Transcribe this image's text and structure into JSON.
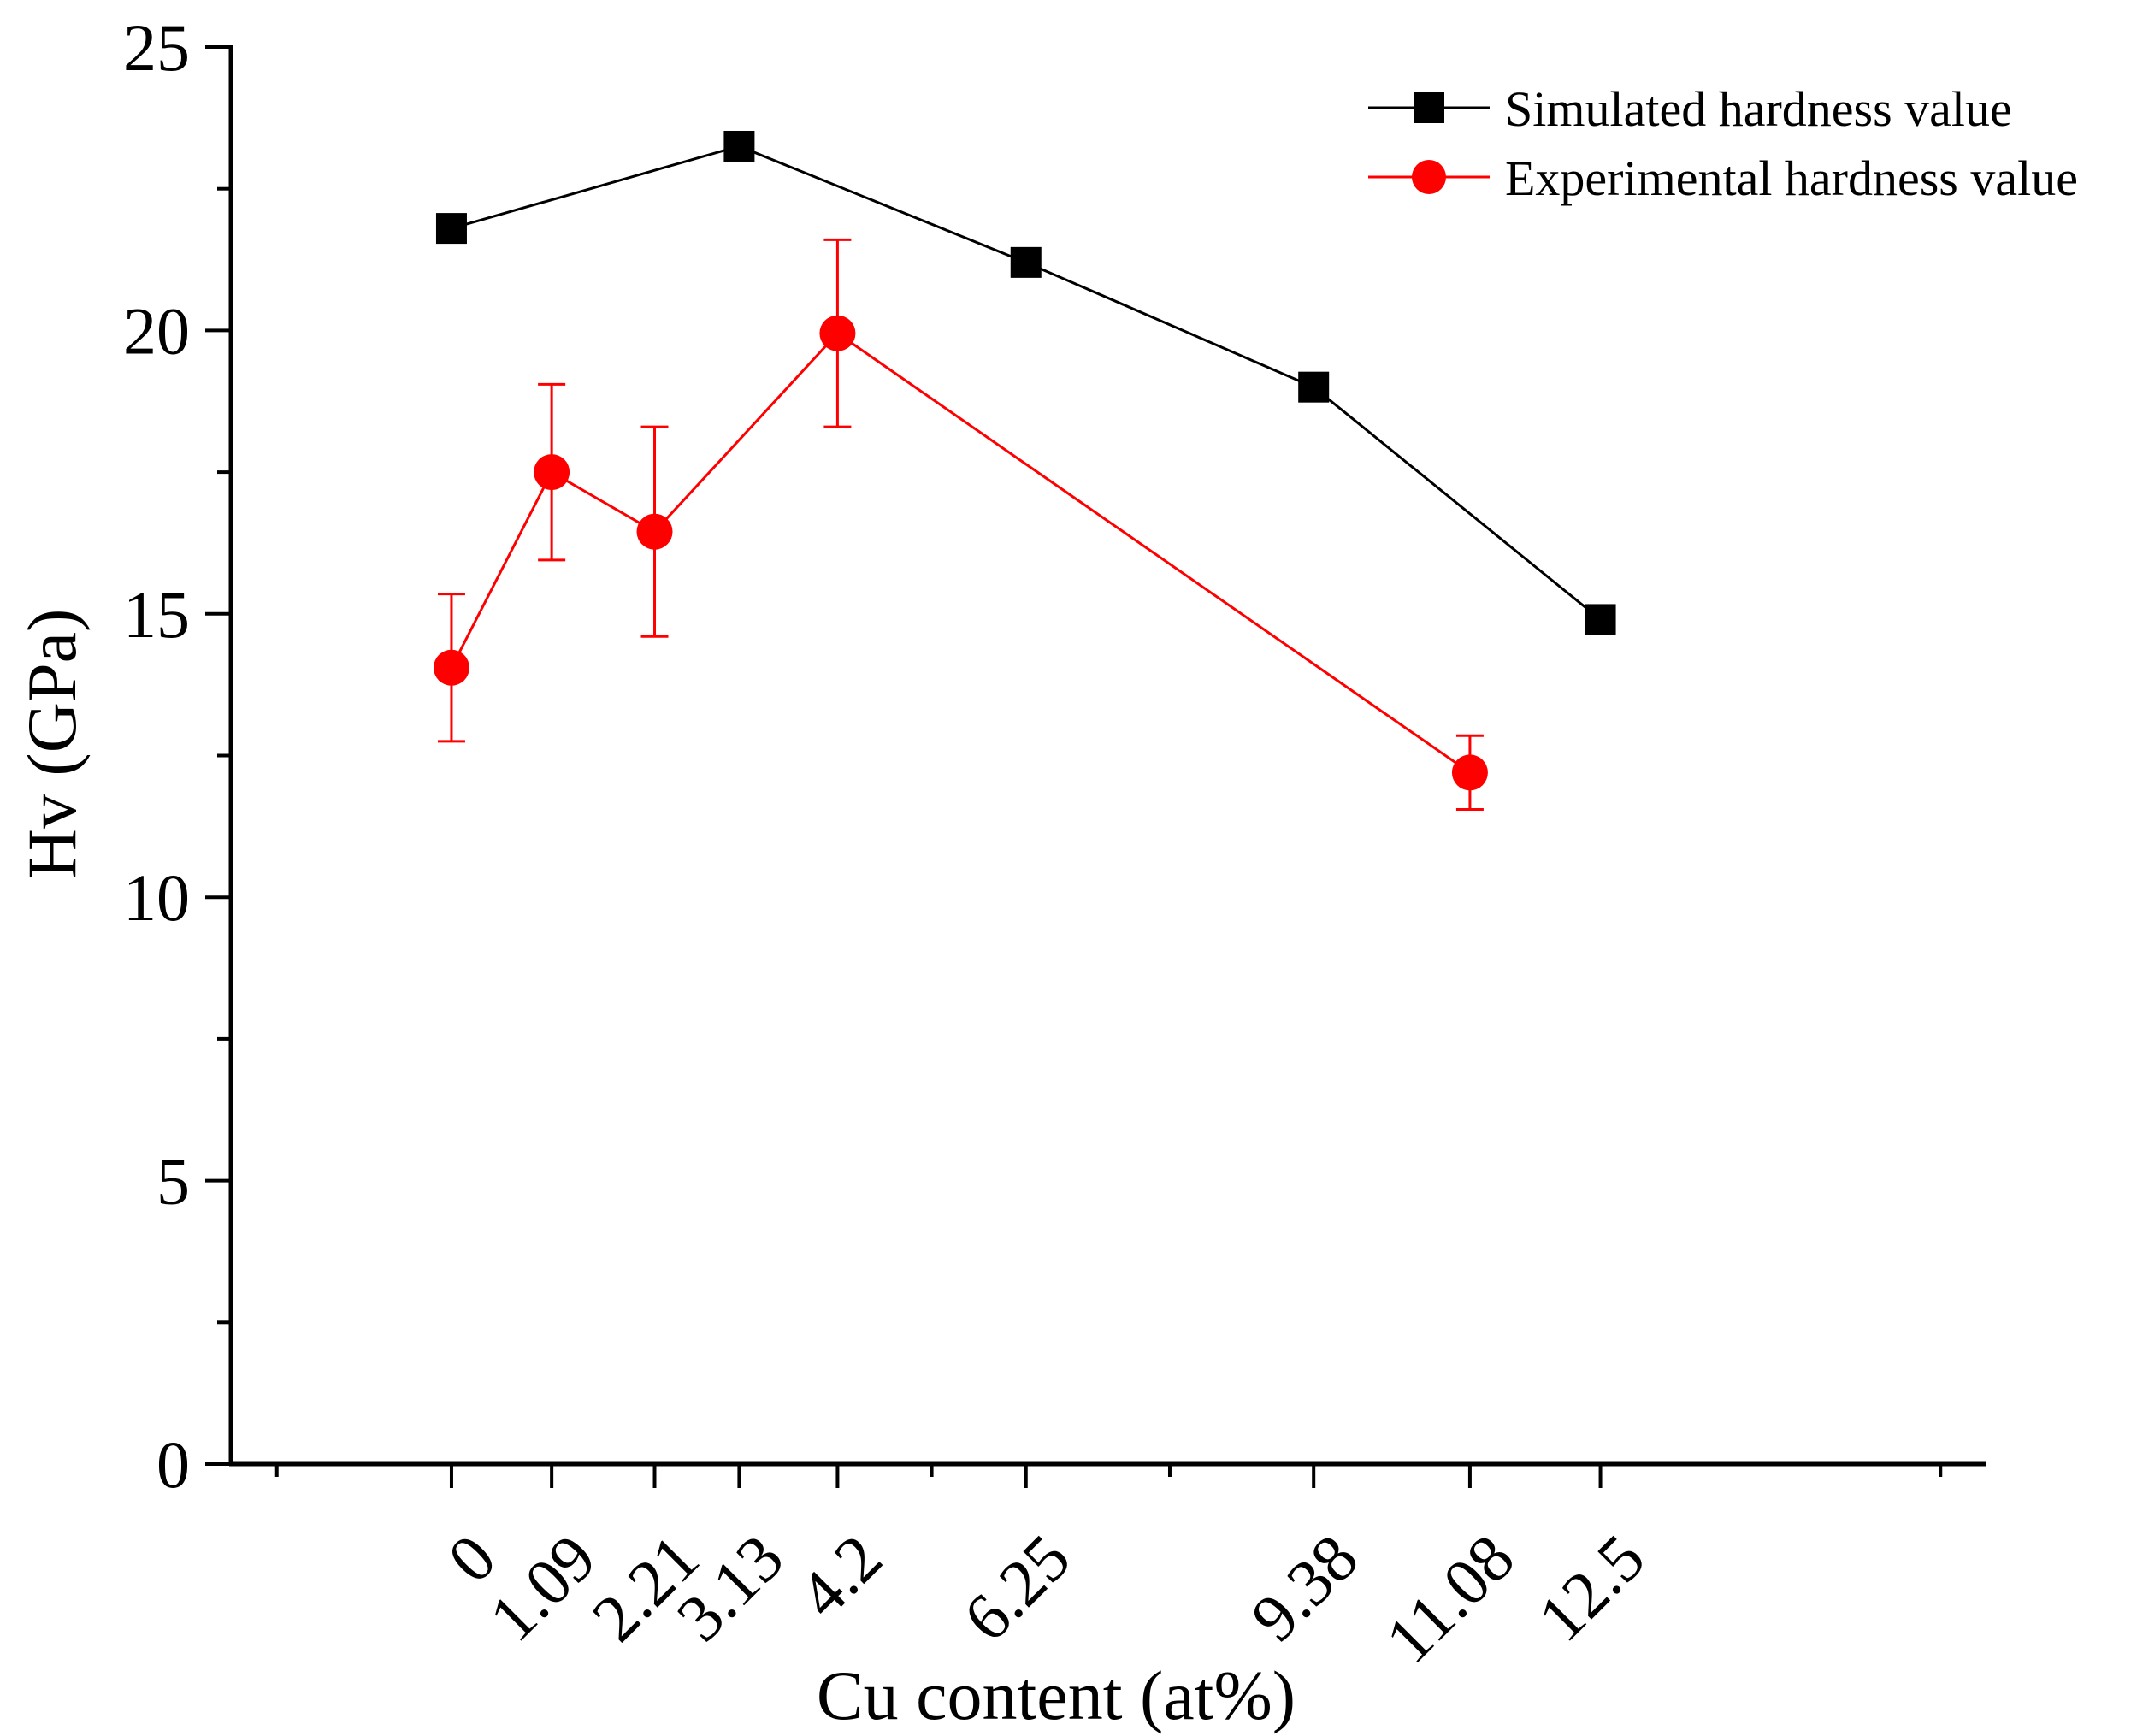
{
  "chart_data": {
    "type": "line",
    "title": "",
    "xlabel": "Cu content (at%)",
    "ylabel": "Hv (GPa)",
    "ylim": [
      0,
      25
    ],
    "xlim": [
      -2.4,
      16.7
    ],
    "y_ticks": [
      0,
      5,
      10,
      15,
      20,
      25
    ],
    "y_minor_ticks": [
      2.5,
      7.5,
      12.5,
      17.5,
      22.5
    ],
    "x_ticks": [
      0,
      1.09,
      2.21,
      3.13,
      4.2,
      6.25,
      9.38,
      11.08,
      12.5
    ],
    "x_tick_labels": [
      "0",
      "1.09",
      "2.21",
      "3.13",
      "4.2",
      "6.25",
      "9.38",
      "11.08",
      "12.5"
    ],
    "grid": false,
    "legend_position": "top-right",
    "series": [
      {
        "name": "Simulated hardness value",
        "color": "#000000",
        "marker": "square",
        "x": [
          0,
          3.13,
          6.25,
          9.38,
          12.5
        ],
        "values": [
          21.8,
          23.25,
          21.2,
          19.0,
          14.9
        ]
      },
      {
        "name": "Experimental hardness value",
        "color": "#ff0000",
        "marker": "circle",
        "x": [
          0,
          1.09,
          2.21,
          4.2,
          11.08
        ],
        "values": [
          14.05,
          17.5,
          16.45,
          19.95,
          12.2
        ],
        "error": [
          1.3,
          1.55,
          1.85,
          1.65,
          0.65
        ]
      }
    ]
  }
}
